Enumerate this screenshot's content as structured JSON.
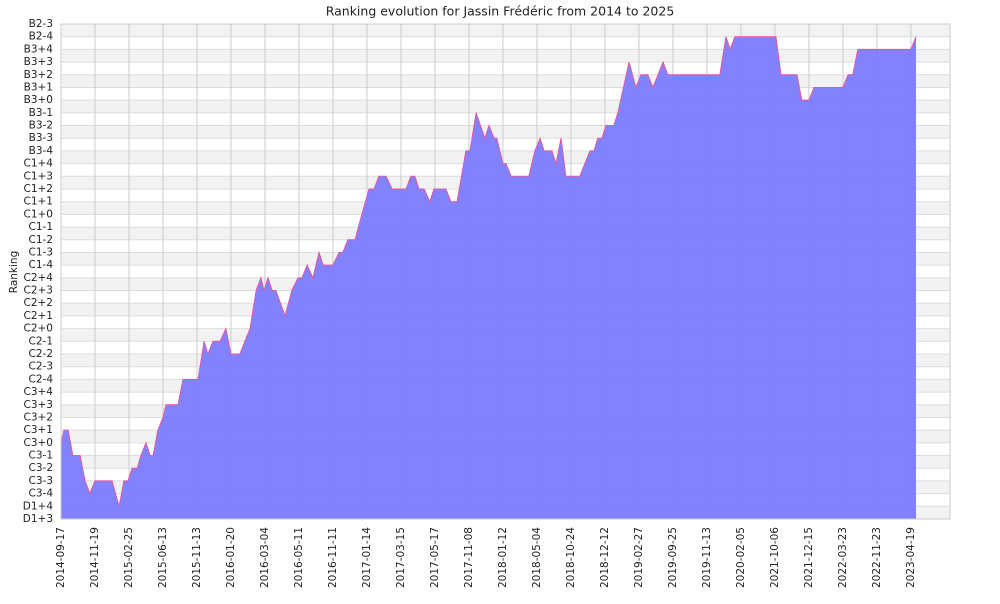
{
  "chart_data": {
    "type": "area",
    "title": "Ranking evolution for Jassin Frédéric from 2014 to 2025",
    "ylabel": "Ranking",
    "color": "#7b7bff",
    "line_color": "#e05a9a",
    "grid": true,
    "xlim": [
      0,
      26.15
    ],
    "xticks": [
      {
        "value": 0,
        "label": "2014-09-17"
      },
      {
        "value": 1,
        "label": "2014-11-19"
      },
      {
        "value": 2,
        "label": "2015-02-25"
      },
      {
        "value": 3,
        "label": "2015-06-13"
      },
      {
        "value": 4,
        "label": "2015-11-13"
      },
      {
        "value": 5,
        "label": "2016-01-20"
      },
      {
        "value": 6,
        "label": "2016-03-04"
      },
      {
        "value": 7,
        "label": "2016-05-11"
      },
      {
        "value": 8,
        "label": "2016-11-11"
      },
      {
        "value": 9,
        "label": "2017-01-14"
      },
      {
        "value": 10,
        "label": "2017-03-15"
      },
      {
        "value": 11,
        "label": "2017-05-17"
      },
      {
        "value": 12,
        "label": "2017-11-08"
      },
      {
        "value": 13,
        "label": "2018-01-12"
      },
      {
        "value": 14,
        "label": "2018-05-04"
      },
      {
        "value": 15,
        "label": "2018-10-24"
      },
      {
        "value": 16,
        "label": "2018-12-12"
      },
      {
        "value": 17,
        "label": "2019-02-27"
      },
      {
        "value": 18,
        "label": "2019-09-25"
      },
      {
        "value": 19,
        "label": "2019-11-13"
      },
      {
        "value": 20,
        "label": "2020-02-05"
      },
      {
        "value": 21,
        "label": "2021-10-06"
      },
      {
        "value": 22,
        "label": "2021-12-15"
      },
      {
        "value": 23,
        "label": "2022-03-23"
      },
      {
        "value": 24,
        "label": "2022-11-23"
      },
      {
        "value": 25,
        "label": "2023-04-19"
      }
    ],
    "ylim": [
      0,
      39
    ],
    "yticks": [
      {
        "value": 0,
        "label": "D1+3"
      },
      {
        "value": 1,
        "label": "D1+4"
      },
      {
        "value": 2,
        "label": "C3-4"
      },
      {
        "value": 3,
        "label": "C3-3"
      },
      {
        "value": 4,
        "label": "C3-2"
      },
      {
        "value": 5,
        "label": "C3-1"
      },
      {
        "value": 6,
        "label": "C3+0"
      },
      {
        "value": 7,
        "label": "C3+1"
      },
      {
        "value": 8,
        "label": "C3+2"
      },
      {
        "value": 9,
        "label": "C3+3"
      },
      {
        "value": 10,
        "label": "C3+4"
      },
      {
        "value": 11,
        "label": "C2-4"
      },
      {
        "value": 12,
        "label": "C2-3"
      },
      {
        "value": 13,
        "label": "C2-2"
      },
      {
        "value": 14,
        "label": "C2-1"
      },
      {
        "value": 15,
        "label": "C2+0"
      },
      {
        "value": 16,
        "label": "C2+1"
      },
      {
        "value": 17,
        "label": "C2+2"
      },
      {
        "value": 18,
        "label": "C2+3"
      },
      {
        "value": 19,
        "label": "C2+4"
      },
      {
        "value": 20,
        "label": "C1-4"
      },
      {
        "value": 21,
        "label": "C1-3"
      },
      {
        "value": 22,
        "label": "C1-2"
      },
      {
        "value": 23,
        "label": "C1-1"
      },
      {
        "value": 24,
        "label": "C1+0"
      },
      {
        "value": 25,
        "label": "C1+1"
      },
      {
        "value": 26,
        "label": "C1+2"
      },
      {
        "value": 27,
        "label": "C1+3"
      },
      {
        "value": 28,
        "label": "C1+4"
      },
      {
        "value": 29,
        "label": "B3-4"
      },
      {
        "value": 30,
        "label": "B3-3"
      },
      {
        "value": 31,
        "label": "B3-2"
      },
      {
        "value": 32,
        "label": "B3-1"
      },
      {
        "value": 33,
        "label": "B3+0"
      },
      {
        "value": 34,
        "label": "B3+1"
      },
      {
        "value": 35,
        "label": "B3+2"
      },
      {
        "value": 36,
        "label": "B3+3"
      },
      {
        "value": 37,
        "label": "B3+4"
      },
      {
        "value": 38,
        "label": "B2-4"
      },
      {
        "value": 39,
        "label": "B2-3"
      }
    ],
    "x": [
      0,
      0.09,
      0.21,
      0.35,
      0.56,
      0.71,
      0.85,
      1,
      1.5,
      1.71,
      1.85,
      1.97,
      2.09,
      2.24,
      2.35,
      2.5,
      2.62,
      2.71,
      2.85,
      3,
      3.09,
      3.44,
      3.59,
      4.03,
      4.21,
      4.32,
      4.47,
      4.68,
      4.85,
      5,
      5.26,
      5.41,
      5.56,
      5.74,
      5.88,
      5.97,
      6.09,
      6.21,
      6.32,
      6.59,
      6.79,
      6.97,
      7.09,
      7.24,
      7.41,
      7.59,
      7.71,
      8,
      8.18,
      8.29,
      8.44,
      8.65,
      8.85,
      9.06,
      9.21,
      9.35,
      9.56,
      9.74,
      10.15,
      10.29,
      10.41,
      10.53,
      10.68,
      10.85,
      10.97,
      11.32,
      11.47,
      11.65,
      11.91,
      12.03,
      12.21,
      12.47,
      12.59,
      12.74,
      12.82,
      13,
      13.09,
      13.24,
      13.76,
      13.94,
      14.09,
      14.21,
      14.44,
      14.56,
      14.71,
      14.85,
      15.26,
      15.41,
      15.56,
      15.68,
      15.79,
      15.91,
      16.03,
      16.26,
      16.38,
      16.71,
      16.91,
      17.06,
      17.26,
      17.41,
      17.56,
      17.71,
      17.85,
      19.38,
      19.56,
      19.68,
      19.82,
      21.03,
      21.18,
      21.65,
      21.79,
      22,
      22.15,
      23,
      23.15,
      23.29,
      23.44,
      25,
      25.15
    ],
    "values": [
      6,
      7,
      7,
      5,
      5,
      3,
      2,
      3,
      3,
      1,
      3,
      3,
      4,
      4,
      5,
      6,
      5,
      5,
      7,
      8,
      9,
      9,
      11,
      11,
      14,
      13,
      14,
      14,
      15,
      13,
      13,
      14,
      15,
      18,
      19,
      18,
      19,
      18,
      18,
      16,
      18,
      19,
      19,
      20,
      19,
      21,
      20,
      20,
      21,
      21,
      22,
      22,
      24,
      26,
      26,
      27,
      27,
      26,
      26,
      27,
      27,
      26,
      26,
      25,
      26,
      26,
      25,
      25,
      29,
      29,
      32,
      30,
      31,
      30,
      30,
      28,
      28,
      27,
      27,
      29,
      30,
      29,
      29,
      28,
      30,
      27,
      27,
      28,
      29,
      29,
      30,
      30,
      31,
      31,
      32,
      36,
      34,
      35,
      35,
      34,
      35,
      36,
      35,
      35,
      38,
      37,
      38,
      38,
      35,
      35,
      33,
      33,
      34,
      34,
      35,
      35,
      37,
      37,
      38
    ]
  }
}
